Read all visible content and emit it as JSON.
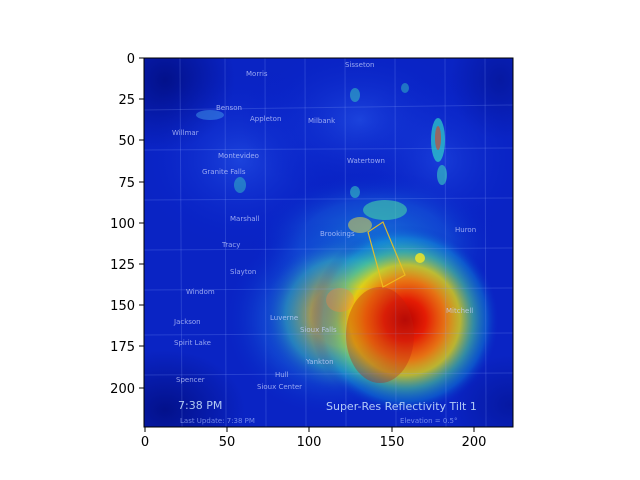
{
  "figure": {
    "axes": {
      "x_ticks": [
        "0",
        "50",
        "100",
        "150",
        "200"
      ],
      "y_ticks": [
        "0",
        "25",
        "50",
        "75",
        "100",
        "125",
        "150",
        "175",
        "200"
      ],
      "x_range": [
        0,
        224
      ],
      "y_range": [
        224,
        0
      ]
    },
    "radar_overlay": {
      "time": "7:38 PM",
      "product": "Super-Res Reflectivity Tilt 1",
      "elevation": "Elevation = 0.5°",
      "last_update": "Last Update: 7:38 PM"
    },
    "map_labels": [
      "Morris",
      "Sisseton",
      "Benson",
      "Appleton",
      "Milbank",
      "Willmar",
      "Montevideo",
      "Granite Falls",
      "Watertown",
      "Marshall",
      "Tracy",
      "Brookings",
      "Huron",
      "Slayton",
      "Windom",
      "Luverne",
      "Sioux Falls",
      "Mitchell",
      "Jackson",
      "Spirit Lake",
      "Spencer",
      "Hull",
      "Sioux Center",
      "Yankton"
    ],
    "heatmap": {
      "colormap": "jet",
      "hotspot_center_data": [
        150,
        160
      ],
      "secondary_warm_region_data": [
        125,
        140
      ]
    }
  }
}
